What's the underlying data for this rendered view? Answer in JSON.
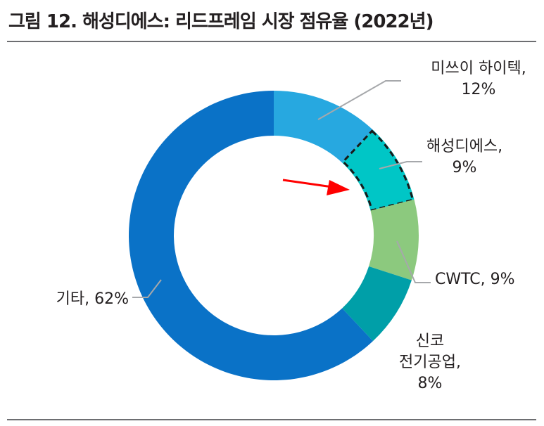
{
  "title": "그림 12. 해성디에스: 리드프레임 시장 점유율 (2022년)",
  "chart_data": {
    "type": "pie",
    "donut": true,
    "unit": "%",
    "slices": [
      {
        "name": "미쓰이 하이텍",
        "value": 12,
        "label_lines": [
          "미쓰이 하이텍,",
          "12%"
        ],
        "color": "#27a8e0"
      },
      {
        "name": "해성디에스",
        "value": 9,
        "label_lines": [
          "해성디에스,",
          "9%"
        ],
        "color": "#00c6c6",
        "highlighted": true
      },
      {
        "name": "CWTC",
        "value": 9,
        "label_lines": [
          "CWTC, 9%"
        ],
        "color": "#8cc97e"
      },
      {
        "name": "신코 전기공업",
        "value": 8,
        "label_lines": [
          "신코",
          "전기공업,",
          "8%"
        ],
        "color": "#009fa8"
      },
      {
        "name": "기타",
        "value": 62,
        "label_lines": [
          "기타, 62%"
        ],
        "color": "#0a72c7"
      }
    ],
    "annotation": {
      "type": "arrow",
      "target": "해성디에스",
      "color": "#ff0000"
    }
  }
}
